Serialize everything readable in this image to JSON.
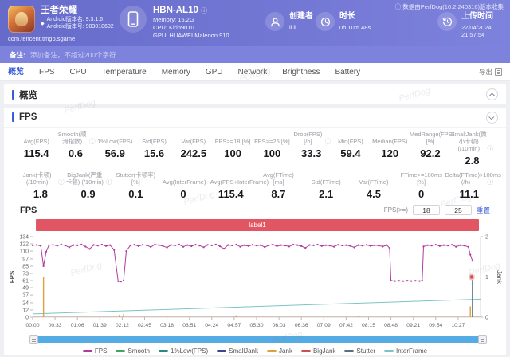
{
  "watermark": "PerfDog",
  "header": {
    "app": {
      "name": "王者荣耀",
      "version_name": "Android版本名: 9.3.1.6",
      "version_code": "Android版本号: 903010602",
      "package": "com.tencent.tmgp.sgame"
    },
    "device": {
      "model": "HBN-AL10",
      "memory": "Memory: 15.2G",
      "cpu": "CPU: Kirin9010",
      "gpu": "GPU: HUAWEI Maleoon 910"
    },
    "creator": {
      "label": "创建者",
      "value": "li li"
    },
    "duration": {
      "label": "时长",
      "value": "0h 10m 48s"
    },
    "upload": {
      "label": "上传时间",
      "value": "22/04/2024 21:57:54"
    },
    "collector_note": "数据由PerfDog(10.2.240316)版本收集"
  },
  "note_bar": {
    "label": "备注:",
    "placeholder": "添加备注，不超过200个字符"
  },
  "tabs": {
    "items": [
      "概览",
      "FPS",
      "CPU",
      "Temperature",
      "Memory",
      "GPU",
      "Network",
      "Brightness",
      "Battery"
    ],
    "active_index": 0,
    "export_label": "导出"
  },
  "sections": {
    "overview_title": "概览",
    "fps_title": "FPS"
  },
  "fps_stats": {
    "row1": [
      {
        "label": "Avg(FPS)",
        "value": "115.4",
        "info": false
      },
      {
        "label": "Smooth(顺滑指数)",
        "value": "0.6",
        "info": true
      },
      {
        "label": "1%Low(FPS)",
        "value": "56.9",
        "info": false
      },
      {
        "label": "Std(FPS)",
        "value": "15.6",
        "info": false
      },
      {
        "label": "Var(FPS)",
        "value": "242.5",
        "info": false
      },
      {
        "label": "FPS>=18 [%]",
        "value": "100",
        "info": false
      },
      {
        "label": "FPS>=25 [%]",
        "value": "100",
        "info": false
      },
      {
        "label": "Drop(FPS) [/h]",
        "value": "33.3",
        "info": true
      },
      {
        "label": "Min(FPS)",
        "value": "59.4",
        "info": false
      },
      {
        "label": "Median(FPS)",
        "value": "120",
        "info": false
      },
      {
        "label": "MedRange(FPS)[%]",
        "value": "92.2",
        "info": false
      },
      {
        "label": "SmallJank(微小卡顿) (/10min)",
        "value": "2.8",
        "info": true
      }
    ],
    "row2": [
      {
        "label": "Jank(卡顿) (/10min)",
        "value": "1.8",
        "info": true
      },
      {
        "label": "BigJank(严重卡顿) (/10min)",
        "value": "0.9",
        "info": true
      },
      {
        "label": "Stutter(卡顿率) [%]",
        "value": "0.1",
        "info": false
      },
      {
        "label": "Avg(InterFrame)",
        "value": "0",
        "info": false
      },
      {
        "label": "Avg(FPS+InterFrame)",
        "value": "115.4",
        "info": false
      },
      {
        "label": "Avg(FTime) [ms]",
        "value": "8.7",
        "info": false
      },
      {
        "label": "Std(FTime)",
        "value": "2.1",
        "info": false
      },
      {
        "label": "Var(FTime)",
        "value": "4.5",
        "info": false
      },
      {
        "label": "FTime>=100ms [%]",
        "value": "0",
        "info": false
      },
      {
        "label": "Delta(FTime)>100ms (/h)",
        "value": "11.1",
        "info": true
      }
    ]
  },
  "fps_filter": {
    "label": "FPS(>=)",
    "value1": "18",
    "value2": "25",
    "reset_label": "重置"
  },
  "chart_data": {
    "type": "line",
    "title": "FPS",
    "ylabel": "FPS",
    "y2label": "Jank",
    "ylim": [
      0,
      134
    ],
    "y2lim": [
      0,
      2
    ],
    "yticks": [
      134,
      122,
      110,
      97,
      85,
      73,
      61,
      49,
      37,
      24,
      12,
      0
    ],
    "y2ticks": [
      2,
      1,
      0
    ],
    "xticks": [
      "00:00",
      "00:33",
      "01:06",
      "01:39",
      "02:12",
      "02:45",
      "03:18",
      "03:51",
      "04:24",
      "04:57",
      "05:30",
      "06:03",
      "06:36",
      "07:09",
      "07:42",
      "08:15",
      "08:48",
      "09:21",
      "09:54",
      "10:27"
    ],
    "x_tick_interval_seconds": 33,
    "x_domain_seconds": [
      0,
      660
    ],
    "annotation_label": "label1",
    "annotation_color": "#e25663",
    "legend": [
      {
        "name": "FPS",
        "color": "#b03a9e"
      },
      {
        "name": "Smooth",
        "color": "#43a35f"
      },
      {
        "name": "1%Low(FPS)",
        "color": "#2a8a7e"
      },
      {
        "name": "SmallJank",
        "color": "#3d4494"
      },
      {
        "name": "Jank",
        "color": "#dfa040"
      },
      {
        "name": "BigJank",
        "color": "#cf4f4f"
      },
      {
        "name": "Stutter",
        "color": "#56707c"
      },
      {
        "name": "InterFrame",
        "color": "#7cc4c4"
      }
    ],
    "series": {
      "fps_points": [
        [
          0,
          119.5
        ],
        [
          6,
          120.2
        ],
        [
          12,
          118.6
        ],
        [
          16,
          85
        ],
        [
          20,
          109
        ],
        [
          24,
          119.8
        ],
        [
          30,
          120.4
        ],
        [
          36,
          118.9
        ],
        [
          42,
          120.8
        ],
        [
          48,
          119.3
        ],
        [
          54,
          116.2
        ],
        [
          60,
          120.1
        ],
        [
          66,
          119.6
        ],
        [
          72,
          120.9
        ],
        [
          78,
          117.4
        ],
        [
          84,
          113.5
        ],
        [
          90,
          120.2
        ],
        [
          96,
          119.1
        ],
        [
          102,
          120.7
        ],
        [
          108,
          118.3
        ],
        [
          114,
          120
        ],
        [
          120,
          112
        ],
        [
          126,
          60
        ],
        [
          130,
          59.4
        ],
        [
          134,
          61
        ],
        [
          138,
          110
        ],
        [
          144,
          119.4
        ],
        [
          150,
          120.6
        ],
        [
          156,
          118.2
        ],
        [
          162,
          120.3
        ],
        [
          168,
          119.7
        ],
        [
          174,
          116.8
        ],
        [
          180,
          120.9
        ],
        [
          186,
          120
        ],
        [
          192,
          118.4
        ],
        [
          198,
          115.9
        ],
        [
          204,
          120.2
        ],
        [
          210,
          119.3
        ],
        [
          216,
          120.8
        ],
        [
          222,
          117.2
        ],
        [
          228,
          119.9
        ],
        [
          234,
          118.1
        ],
        [
          240,
          120.6
        ],
        [
          246,
          119.2
        ],
        [
          252,
          116.4
        ],
        [
          258,
          120.3
        ],
        [
          264,
          119.5
        ],
        [
          270,
          120.9
        ],
        [
          276,
          118
        ],
        [
          282,
          113.8
        ],
        [
          288,
          120.1
        ],
        [
          294,
          119.4
        ],
        [
          300,
          120.7
        ],
        [
          306,
          117.1
        ],
        [
          312,
          119.8
        ],
        [
          318,
          118.3
        ],
        [
          324,
          120.5
        ],
        [
          330,
          119.2
        ],
        [
          336,
          120
        ],
        [
          342,
          116.6
        ],
        [
          348,
          119.6
        ],
        [
          354,
          120.8
        ],
        [
          360,
          118.1
        ],
        [
          366,
          119.9
        ],
        [
          372,
          119.3
        ],
        [
          378,
          117.5
        ],
        [
          384,
          120.6
        ],
        [
          390,
          120
        ],
        [
          396,
          118.2
        ],
        [
          402,
          115.3
        ],
        [
          408,
          120.1
        ],
        [
          414,
          119.5
        ],
        [
          420,
          120.7
        ],
        [
          426,
          118.4
        ],
        [
          432,
          119.8
        ],
        [
          438,
          119.1
        ],
        [
          444,
          117.3
        ],
        [
          450,
          120.5
        ],
        [
          456,
          119.4
        ],
        [
          462,
          120
        ],
        [
          468,
          118.6
        ],
        [
          474,
          116.1
        ],
        [
          480,
          119.9
        ],
        [
          486,
          119.2
        ],
        [
          492,
          120.4
        ],
        [
          498,
          118.3
        ],
        [
          504,
          119.7
        ],
        [
          510,
          119
        ],
        [
          516,
          117.6
        ],
        [
          522,
          119.8
        ],
        [
          526,
          115
        ],
        [
          528,
          61
        ],
        [
          534,
          60.2
        ],
        [
          540,
          60.8
        ],
        [
          546,
          60.1
        ],
        [
          552,
          60.9
        ],
        [
          558,
          60.3
        ],
        [
          564,
          60.7
        ],
        [
          570,
          60.2
        ],
        [
          574,
          61
        ],
        [
          576,
          117.5
        ],
        [
          582,
          119.8
        ],
        [
          588,
          119.2
        ],
        [
          594,
          120.6
        ],
        [
          600,
          118.4
        ],
        [
          606,
          119.9
        ],
        [
          612,
          119.3
        ],
        [
          618,
          120.5
        ],
        [
          624,
          117.2
        ],
        [
          630,
          119.8
        ],
        [
          636,
          119.1
        ],
        [
          642,
          117
        ],
        [
          645,
          104
        ],
        [
          648,
          94
        ]
      ],
      "interframe_line": [
        [
          0,
          5.5
        ],
        [
          660,
          30
        ]
      ],
      "jank_impulses": [
        [
          16,
          67
        ],
        [
          128,
          4
        ],
        [
          134,
          5
        ],
        [
          300,
          3
        ],
        [
          480,
          2
        ],
        [
          645,
          18
        ]
      ],
      "stutter_impulses": [
        [
          648,
          62
        ]
      ],
      "bigjank_points": [
        [
          647,
          67
        ]
      ]
    }
  }
}
